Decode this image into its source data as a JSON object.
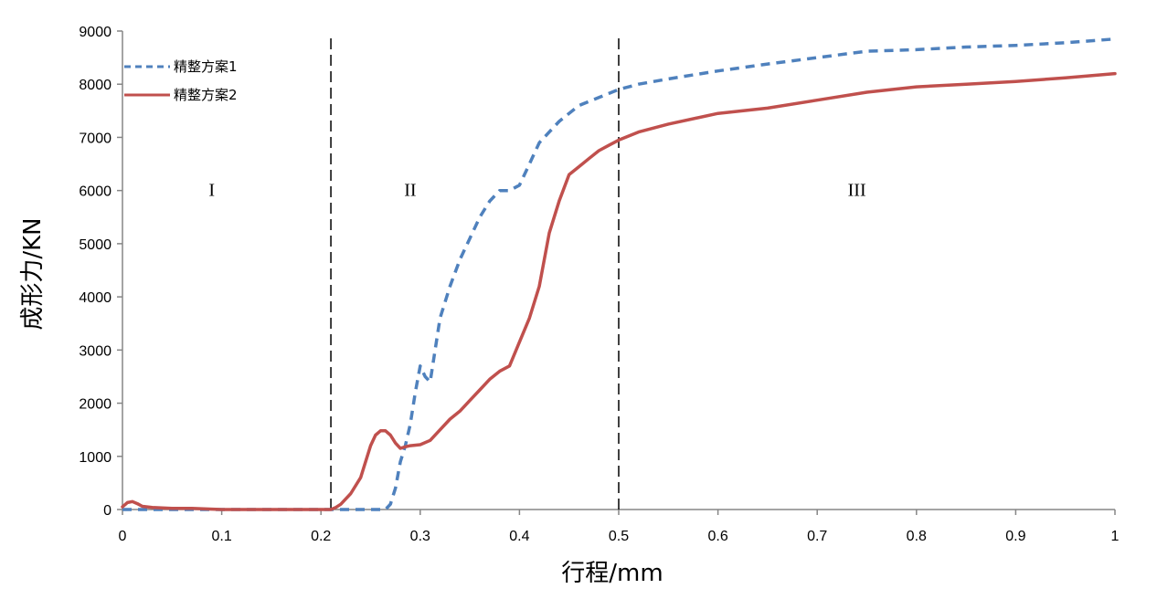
{
  "chart_data": {
    "type": "line",
    "title": "",
    "xlabel": "行程/mm",
    "ylabel": "成形力/KN",
    "xlim": [
      0,
      1
    ],
    "ylim": [
      0,
      9000
    ],
    "x_ticks": [
      "0",
      "0.1",
      "0.2",
      "0.3",
      "0.4",
      "0.5",
      "0.6",
      "0.7",
      "0.8",
      "0.9",
      "1"
    ],
    "y_ticks": [
      "0",
      "1000",
      "2000",
      "3000",
      "4000",
      "5000",
      "6000",
      "7000",
      "8000",
      "9000"
    ],
    "grid": false,
    "legend_position": "top-left",
    "vlines": [
      0.21,
      0.5
    ],
    "region_labels": [
      {
        "text": "I",
        "x": 0.09,
        "y": 5900
      },
      {
        "text": "II",
        "x": 0.29,
        "y": 5900
      },
      {
        "text": "III",
        "x": 0.74,
        "y": 5900
      }
    ],
    "series": [
      {
        "name": "精整方案1",
        "color": "#4f81bd",
        "style": "dashed",
        "x": [
          0,
          0.25,
          0.265,
          0.27,
          0.275,
          0.28,
          0.285,
          0.29,
          0.295,
          0.3,
          0.305,
          0.31,
          0.315,
          0.32,
          0.33,
          0.34,
          0.35,
          0.36,
          0.37,
          0.38,
          0.39,
          0.4,
          0.41,
          0.42,
          0.43,
          0.44,
          0.45,
          0.46,
          0.48,
          0.5,
          0.52,
          0.55,
          0.6,
          0.65,
          0.7,
          0.75,
          0.8,
          0.85,
          0.9,
          0.95,
          1.0
        ],
        "y": [
          0,
          0,
          0,
          100,
          400,
          900,
          1200,
          1600,
          2200,
          2700,
          2500,
          2400,
          3000,
          3600,
          4200,
          4700,
          5100,
          5500,
          5800,
          6000,
          6000,
          6100,
          6500,
          6900,
          7100,
          7300,
          7450,
          7600,
          7750,
          7900,
          8000,
          8100,
          8250,
          8380,
          8500,
          8620,
          8650,
          8700,
          8730,
          8780,
          8850
        ]
      },
      {
        "name": "精整方案2",
        "color": "#c0504d",
        "style": "solid",
        "x": [
          0,
          0.005,
          0.01,
          0.015,
          0.02,
          0.03,
          0.05,
          0.07,
          0.1,
          0.15,
          0.2,
          0.21,
          0.215,
          0.22,
          0.23,
          0.24,
          0.25,
          0.255,
          0.26,
          0.265,
          0.27,
          0.275,
          0.28,
          0.285,
          0.29,
          0.3,
          0.31,
          0.32,
          0.33,
          0.34,
          0.35,
          0.36,
          0.37,
          0.38,
          0.39,
          0.4,
          0.41,
          0.42,
          0.43,
          0.44,
          0.45,
          0.46,
          0.47,
          0.48,
          0.49,
          0.5,
          0.52,
          0.55,
          0.6,
          0.65,
          0.7,
          0.75,
          0.8,
          0.85,
          0.9,
          0.95,
          1.0
        ],
        "y": [
          50,
          130,
          150,
          110,
          60,
          40,
          20,
          20,
          0,
          0,
          0,
          0,
          40,
          100,
          300,
          600,
          1200,
          1400,
          1480,
          1480,
          1400,
          1250,
          1150,
          1180,
          1200,
          1220,
          1300,
          1500,
          1700,
          1850,
          2050,
          2250,
          2450,
          2600,
          2700,
          3150,
          3600,
          4200,
          5200,
          5800,
          6300,
          6450,
          6600,
          6750,
          6850,
          6950,
          7100,
          7250,
          7450,
          7550,
          7700,
          7850,
          7950,
          8000,
          8050,
          8120,
          8200
        ]
      }
    ]
  }
}
